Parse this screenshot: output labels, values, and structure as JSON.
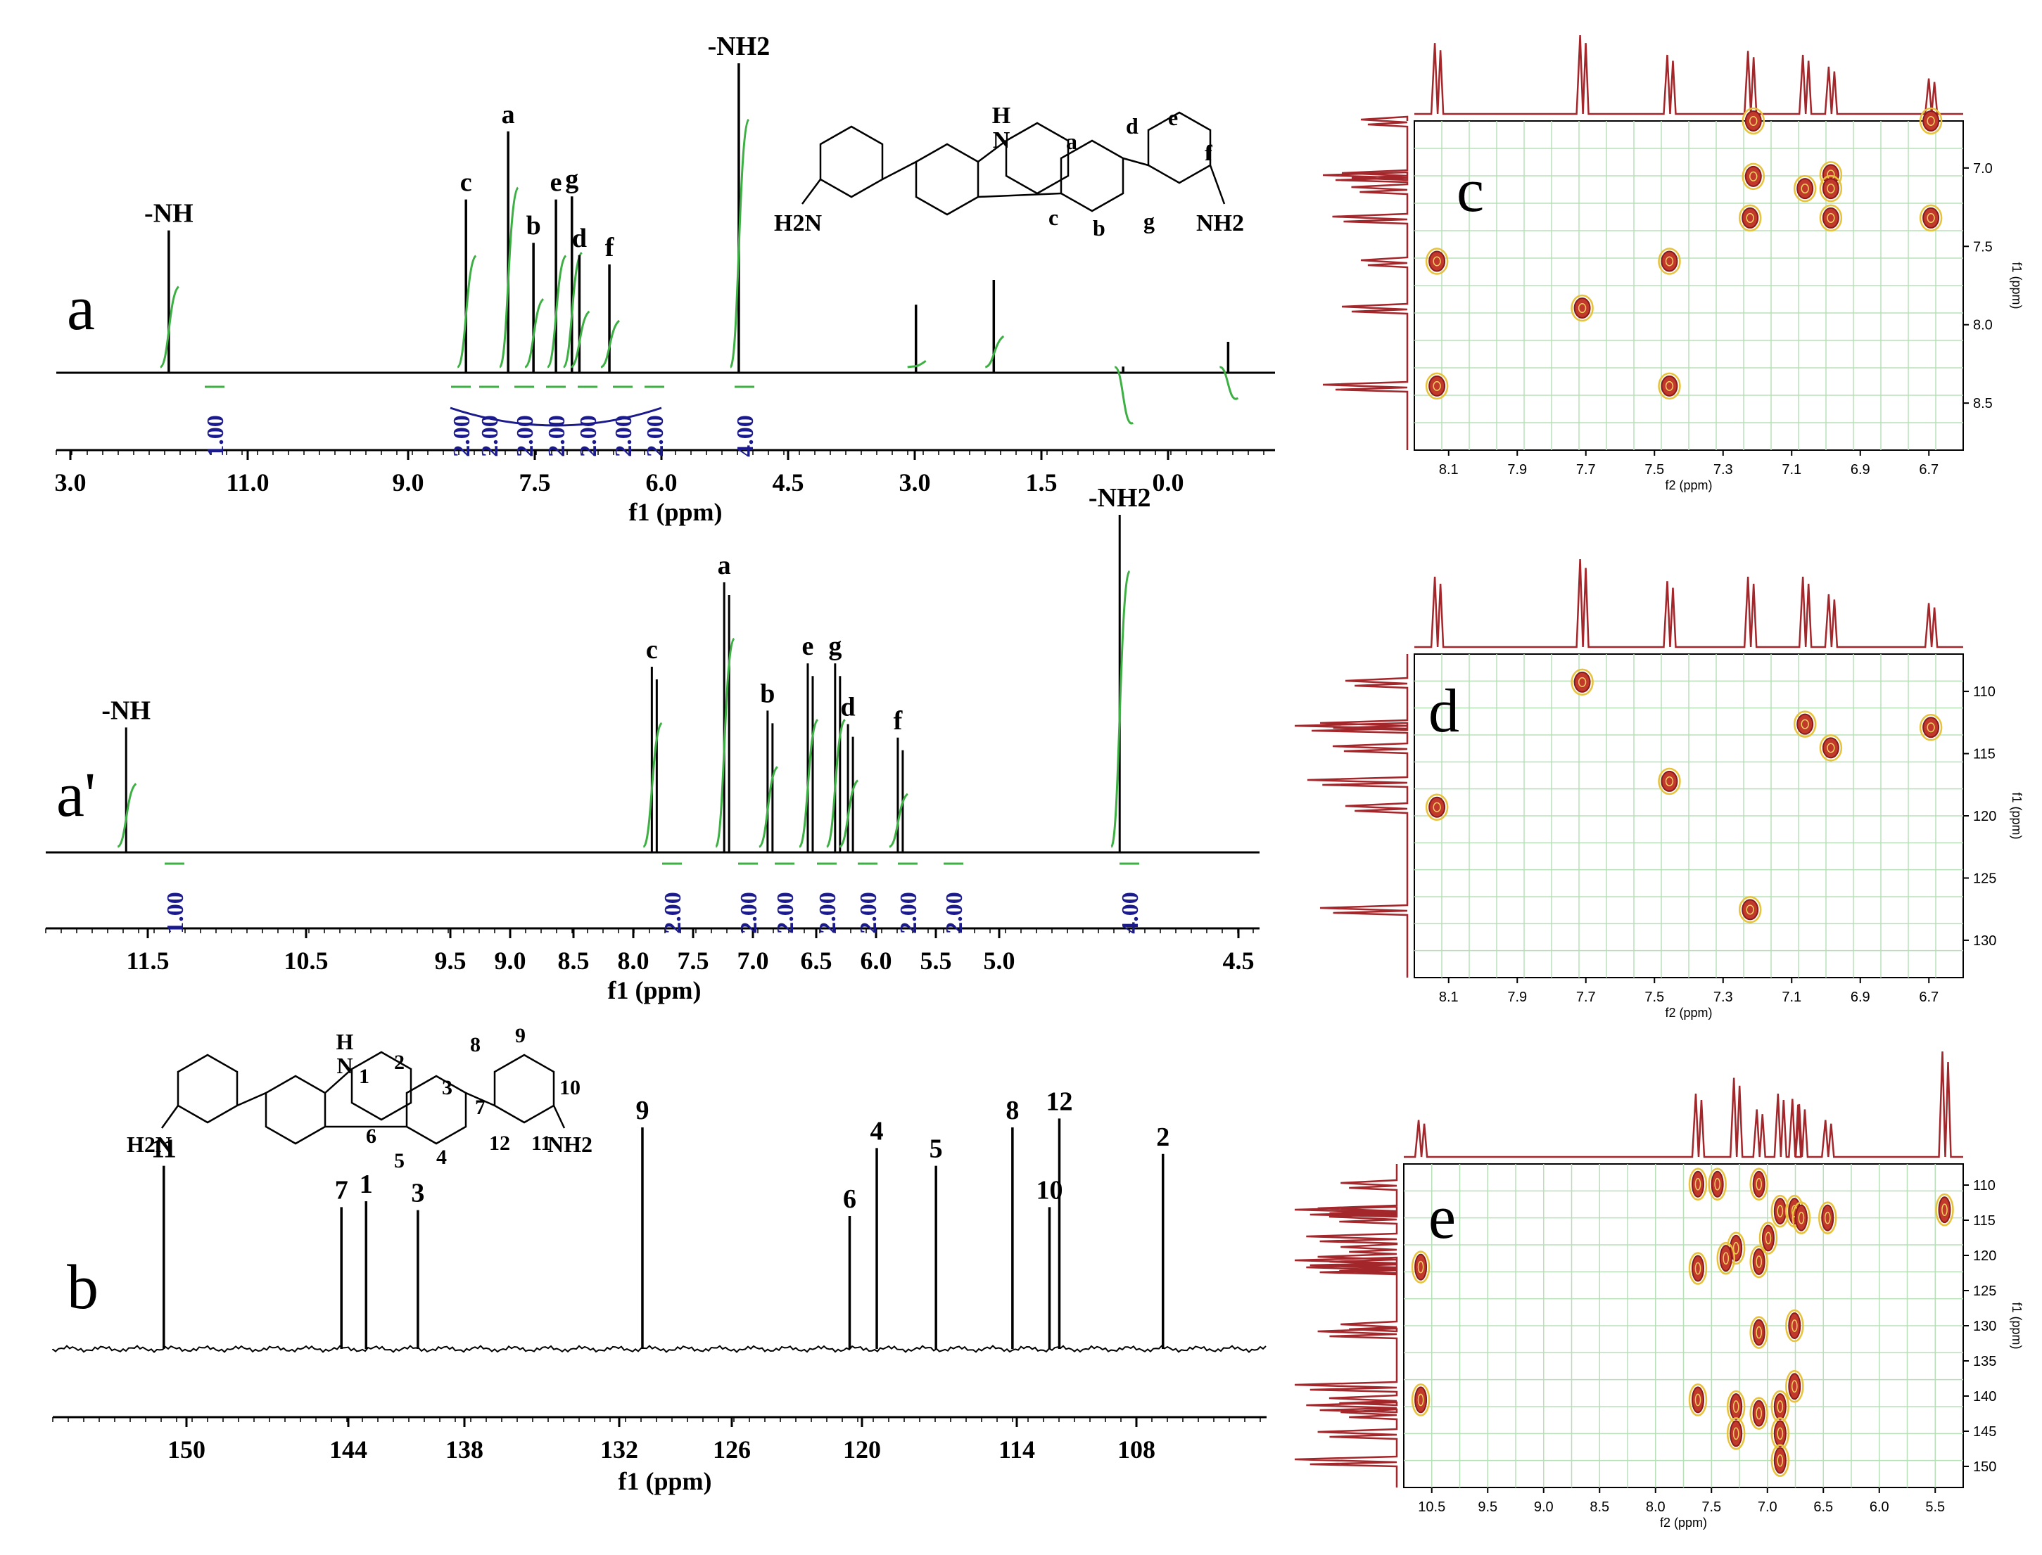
{
  "chart_data": [
    {
      "id": "a",
      "type": "line",
      "panel_label": "a",
      "xlabel": "f1 (ppm)",
      "x_ticks": [
        "3.0",
        "11.0",
        "9.0",
        "7.5",
        "6.0",
        "4.5",
        "3.0",
        "1.5",
        "0.0"
      ],
      "xlim": [
        12.5,
        -0.5
      ],
      "peaks": [
        {
          "ppm": 11.3,
          "height": 0.46,
          "label": "-NH"
        },
        {
          "ppm": 8.13,
          "height": 0.56,
          "label": "c"
        },
        {
          "ppm": 7.68,
          "height": 0.78,
          "label": "a"
        },
        {
          "ppm": 7.41,
          "height": 0.42,
          "label": "b"
        },
        {
          "ppm": 7.17,
          "height": 0.56,
          "label": "e"
        },
        {
          "ppm": 7.0,
          "height": 0.57,
          "label": "g"
        },
        {
          "ppm": 6.92,
          "height": 0.38,
          "label": "d"
        },
        {
          "ppm": 6.6,
          "height": 0.35,
          "label": "f"
        },
        {
          "ppm": 5.22,
          "height": 1.0,
          "label": "-NH2"
        },
        {
          "ppm": 3.33,
          "height": 0.22,
          "label": ""
        },
        {
          "ppm": 2.5,
          "height": 0.3,
          "label": ""
        },
        {
          "ppm": 1.12,
          "height": 0.02,
          "label": ""
        },
        {
          "ppm": 0.0,
          "height": 0.1,
          "label": ""
        }
      ],
      "integrals": [
        "1.00",
        "2.00",
        "2.00",
        "2.00",
        "2.00",
        "2.00",
        "2.00",
        "2.00",
        "4.00"
      ]
    },
    {
      "id": "a-prime",
      "type": "line",
      "panel_label": "a'",
      "xlabel": "f1 (ppm)",
      "x_ticks": [
        "11.5",
        "10.5",
        "9.5",
        "9.0",
        "8.5",
        "8.0",
        "7.5",
        "7.0",
        "6.5",
        "6.0",
        "5.5",
        "5.0",
        "4.5"
      ],
      "xlim": [
        11.9,
        4.35
      ],
      "peaks": [
        {
          "ppm": 11.4,
          "height": 0.37,
          "label": "-NH"
        },
        {
          "ppm": 8.13,
          "height": 0.55,
          "label": "c"
        },
        {
          "ppm": 7.68,
          "height": 0.8,
          "label": "a"
        },
        {
          "ppm": 7.41,
          "height": 0.42,
          "label": "b"
        },
        {
          "ppm": 7.16,
          "height": 0.56,
          "label": "e"
        },
        {
          "ppm": 6.99,
          "height": 0.56,
          "label": "g"
        },
        {
          "ppm": 6.91,
          "height": 0.38,
          "label": "d"
        },
        {
          "ppm": 6.6,
          "height": 0.34,
          "label": "f"
        },
        {
          "ppm": 5.22,
          "height": 1.0,
          "label": "-NH2"
        }
      ],
      "integrals": [
        "1.00",
        "2.00",
        "2.00",
        "2.00",
        "2.00",
        "2.00",
        "2.00",
        "2.00",
        "4.00"
      ]
    },
    {
      "id": "b",
      "type": "line",
      "panel_label": "b",
      "xlabel": "f1 (ppm)",
      "x_ticks": [
        "150",
        "144",
        "138",
        "132",
        "126",
        "120",
        "114",
        "108"
      ],
      "xlim": [
        153.6,
        104.4
      ],
      "peaks": [
        {
          "ppm": 149.1,
          "height": 0.62,
          "label": "11"
        },
        {
          "ppm": 141.9,
          "height": 0.48,
          "label": "7"
        },
        {
          "ppm": 140.9,
          "height": 0.5,
          "label": "1"
        },
        {
          "ppm": 138.8,
          "height": 0.47,
          "label": "3"
        },
        {
          "ppm": 129.7,
          "height": 0.75,
          "label": "9"
        },
        {
          "ppm": 121.3,
          "height": 0.45,
          "label": "6"
        },
        {
          "ppm": 120.2,
          "height": 0.68,
          "label": "4"
        },
        {
          "ppm": 117.8,
          "height": 0.62,
          "label": "5"
        },
        {
          "ppm": 114.7,
          "height": 0.75,
          "label": "8"
        },
        {
          "ppm": 113.2,
          "height": 0.48,
          "label": "10"
        },
        {
          "ppm": 112.8,
          "height": 0.78,
          "label": "12"
        },
        {
          "ppm": 108.6,
          "height": 0.66,
          "label": "2"
        }
      ]
    },
    {
      "id": "c",
      "type": "heatmap",
      "panel_label": "c",
      "xlabel": "f2 (ppm)",
      "ylabel": "f1 (ppm)",
      "x_ticks": [
        "8.1",
        "7.9",
        "7.7",
        "7.5",
        "7.3",
        "7.1",
        "6.9",
        "6.7"
      ],
      "y_ticks": [
        "7.0",
        "7.5",
        "8.0",
        "8.5"
      ],
      "xlim": [
        8.2,
        6.5
      ],
      "ylim": [
        6.6,
        8.5
      ],
      "crosspeaks": [
        [
          7.15,
          6.6
        ],
        [
          6.6,
          6.6
        ],
        [
          7.15,
          6.92
        ],
        [
          6.91,
          6.91
        ],
        [
          6.99,
          6.99
        ],
        [
          6.91,
          6.99
        ],
        [
          7.16,
          7.16
        ],
        [
          6.91,
          7.16
        ],
        [
          6.6,
          7.16
        ],
        [
          8.13,
          7.41
        ],
        [
          7.41,
          7.41
        ],
        [
          7.68,
          7.68
        ],
        [
          8.13,
          8.13
        ],
        [
          7.41,
          8.13
        ]
      ]
    },
    {
      "id": "d",
      "type": "heatmap",
      "panel_label": "d",
      "xlabel": "f2 (ppm)",
      "ylabel": "f1 (ppm)",
      "x_ticks": [
        "8.1",
        "7.9",
        "7.7",
        "7.5",
        "7.3",
        "7.1",
        "6.9",
        "6.7"
      ],
      "y_ticks": [
        "110",
        "115",
        "120",
        "125",
        "130"
      ],
      "xlim": [
        8.2,
        6.5
      ],
      "ylim": [
        106,
        136
      ],
      "crosspeaks": [
        [
          7.68,
          108.6
        ],
        [
          6.99,
          112.5
        ],
        [
          6.6,
          112.8
        ],
        [
          6.91,
          114.7
        ],
        [
          7.41,
          117.8
        ],
        [
          8.13,
          120.2
        ],
        [
          7.16,
          129.7
        ]
      ]
    },
    {
      "id": "e",
      "type": "heatmap",
      "panel_label": "e",
      "xlabel": "f2 (ppm)",
      "ylabel": "f1 (ppm)",
      "x_ticks": [
        "10.5",
        "9.5",
        "9.0",
        "8.5",
        "8.0",
        "7.5",
        "7.0",
        "6.5",
        "6.0",
        "5.5"
      ],
      "y_ticks": [
        "110",
        "115",
        "120",
        "125",
        "130",
        "135",
        "140",
        "145",
        "150"
      ],
      "xlim": [
        11.6,
        5.0
      ],
      "ylim": [
        106,
        154
      ],
      "crosspeaks": [
        [
          11.4,
          121.3
        ],
        [
          11.4,
          141.0
        ],
        [
          8.13,
          109
        ],
        [
          8.13,
          121.5
        ],
        [
          8.13,
          141
        ],
        [
          7.9,
          109
        ],
        [
          7.68,
          118.5
        ],
        [
          7.68,
          142
        ],
        [
          7.68,
          146
        ],
        [
          7.41,
          109
        ],
        [
          7.41,
          120.5
        ],
        [
          7.41,
          143
        ],
        [
          7.41,
          131
        ],
        [
          7.16,
          113
        ],
        [
          7.16,
          142
        ],
        [
          7.16,
          146
        ],
        [
          7.16,
          150
        ],
        [
          6.99,
          113
        ],
        [
          6.99,
          130
        ],
        [
          6.99,
          139
        ],
        [
          6.91,
          114
        ],
        [
          6.6,
          114
        ],
        [
          5.22,
          112.8
        ],
        [
          7.8,
          120
        ],
        [
          7.3,
          117
        ]
      ]
    }
  ],
  "molecules": {
    "top": {
      "nh_h": "H",
      "nh_n": "N",
      "labels": [
        "a",
        "b",
        "c",
        "d",
        "e",
        "f",
        "g"
      ],
      "amine_left": "H2N",
      "amine_right": "NH2"
    },
    "bottom": {
      "nh_h": "H",
      "nh_n": "N",
      "numbers": [
        "1",
        "2",
        "3",
        "4",
        "5",
        "6",
        "7",
        "8",
        "9",
        "10",
        "11",
        "12"
      ],
      "amine_left": "H2N",
      "amine_right": "NH2"
    }
  }
}
